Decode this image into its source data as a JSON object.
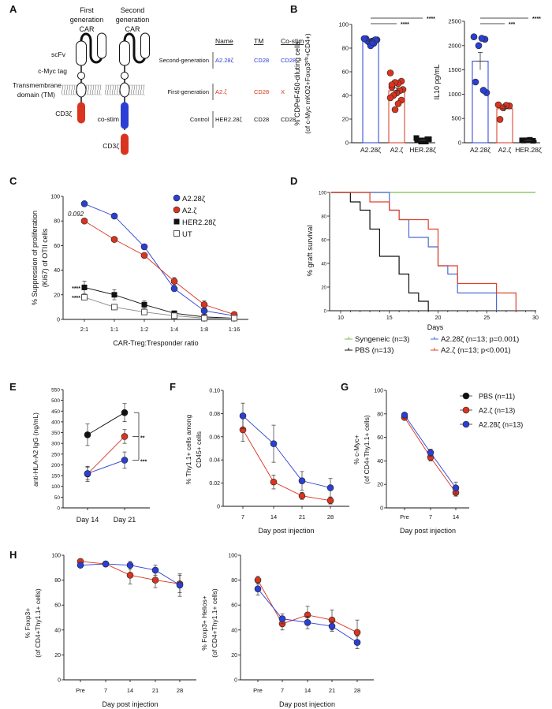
{
  "panel_labels": [
    "A",
    "B",
    "C",
    "D",
    "E",
    "F",
    "G",
    "H"
  ],
  "diagram": {
    "first_title": [
      "First",
      "generation",
      "CAR"
    ],
    "second_title": [
      "Second",
      "generation",
      "CAR"
    ],
    "labels": {
      "scfv": "scFv",
      "cmyc": "c-Myc tag",
      "tm1": "Transmembrane",
      "tm2": "domain (TM)",
      "cd3z_1": "CD3ζ",
      "costim": "co-stim",
      "cd3z_2": "CD3ζ"
    },
    "colors": {
      "cd3z": "#d9341f",
      "costim": "#2b3fd4"
    },
    "table": {
      "headers": [
        "Name",
        "TM",
        "Co-stim"
      ],
      "rows": [
        {
          "group": "Second-generation",
          "name": "A2.28ζ",
          "tm": "CD28",
          "costim": "CD28",
          "color": "#2b3fd4"
        },
        {
          "group": "First-generation",
          "name": "A2.ζ",
          "tm": "CD28",
          "costim": "X",
          "color": "#d9341f"
        },
        {
          "group": "Control",
          "name": "HER2.28ζ",
          "tm": "CD28",
          "costim": "CD28",
          "color": "#111111"
        }
      ]
    }
  },
  "chart_data": [
    {
      "panel": "B",
      "type": "bar",
      "categories": [
        "A2.28ζ",
        "A2.ζ",
        "HER.28ζ"
      ],
      "ylabel_lines": [
        "% CDPeF450-diluting cells",
        "(of c-Myc mKO2+Foxp3",
        "gfp",
        "+CD4+)"
      ],
      "ylim": [
        0,
        100
      ],
      "yticks": [
        "0",
        "20",
        "40",
        "60",
        "80",
        "100"
      ],
      "colors": [
        "#2b3fd4",
        "#d9341f",
        "#111111"
      ],
      "means": [
        86,
        44,
        2
      ],
      "sem": [
        1,
        2.5,
        0.5
      ],
      "points": [
        [
          88,
          87,
          86,
          85,
          88,
          87,
          84,
          82,
          86,
          88,
          87,
          85
        ],
        [
          59,
          52,
          50,
          51,
          47,
          45,
          44,
          42,
          40,
          38,
          36,
          33,
          28,
          49
        ],
        [
          4,
          3,
          2,
          1,
          2,
          3,
          1,
          2
        ]
      ],
      "significance": [
        {
          "from": 0,
          "to": 2,
          "label": "****"
        },
        {
          "from": 0,
          "to": 1,
          "label": "****"
        }
      ]
    },
    {
      "panel": "B",
      "type": "bar",
      "categories": [
        "A2.28ζ",
        "A2.ζ",
        "HER.28ζ"
      ],
      "ylabel_lines": [
        "IL10 pg/mL"
      ],
      "ylim": [
        0,
        2500
      ],
      "yticks": [
        "0",
        "500",
        "1000",
        "1500",
        "2000",
        "2500"
      ],
      "colors": [
        "#2b3fd4",
        "#d9341f",
        "#111111"
      ],
      "means": [
        1680,
        700,
        45
      ],
      "sem": [
        180,
        50,
        10
      ],
      "points": [
        [
          2180,
          2130,
          2150,
          2000,
          1250,
          1030,
          1080
        ],
        [
          780,
          760,
          770,
          720,
          480
        ],
        [
          50,
          40,
          60,
          50,
          45
        ]
      ],
      "significance": [
        {
          "from": 0,
          "to": 2,
          "label": "****"
        },
        {
          "from": 0,
          "to": 1,
          "label": "***"
        }
      ]
    },
    {
      "panel": "C",
      "type": "line",
      "categories": [
        "2:1",
        "1:1",
        "1:2",
        "1:4",
        "1:8",
        "1:16"
      ],
      "xlabel": "CAR-Treg:Tresponder ratio",
      "ylabel_lines": [
        "% Suppression of proliferation",
        "(Ki67) of OTII cells"
      ],
      "ylim": [
        0,
        100
      ],
      "yticks": [
        "0",
        "20",
        "40",
        "60",
        "80",
        "100"
      ],
      "legend": "top-right",
      "series": [
        {
          "name": "A2.28ζ",
          "color": "#2b3fd4",
          "marker": "circle",
          "values": [
            94,
            84,
            59,
            25,
            7,
            3
          ],
          "errors": [
            0,
            0,
            0,
            1,
            1,
            1
          ]
        },
        {
          "name": "A2.ζ",
          "color": "#d9341f",
          "marker": "circle",
          "values": [
            80,
            65,
            52,
            31,
            12,
            4
          ],
          "errors": [
            0,
            0,
            0,
            3,
            3,
            1
          ]
        },
        {
          "name": "HER2.28ζ",
          "color": "#111111",
          "marker": "square",
          "values": [
            26,
            20,
            12,
            5,
            2,
            1
          ],
          "errors": [
            5,
            4,
            3,
            1.5,
            1,
            0.5
          ]
        },
        {
          "name": "UT",
          "color": "#888888",
          "marker": "open-square",
          "values": [
            18,
            10,
            6,
            3,
            1,
            1
          ],
          "errors": [
            1,
            1,
            1,
            0.5,
            0.5,
            0.5
          ]
        }
      ],
      "annotations": [
        "0.092",
        "****",
        "****"
      ]
    },
    {
      "panel": "D",
      "type": "line",
      "xlabel": "Days",
      "ylabel_lines": [
        "% graft survival"
      ],
      "xlim": [
        9,
        30
      ],
      "xticks": [
        "10",
        "15",
        "20",
        "25",
        "30"
      ],
      "ylim": [
        0,
        100
      ],
      "yticks": [
        "0",
        "20",
        "40",
        "60",
        "80",
        "100"
      ],
      "series": [
        {
          "name": "Syngeneic (n=3)",
          "color": "#7cbf4a",
          "steps": [
            [
              9,
              100
            ],
            [
              30,
              100
            ]
          ]
        },
        {
          "name": "PBS (n=13)",
          "color": "#111111",
          "steps": [
            [
              9,
              100
            ],
            [
              10,
              100
            ],
            [
              11,
              92
            ],
            [
              12,
              85
            ],
            [
              13,
              69
            ],
            [
              14,
              46
            ],
            [
              16,
              31
            ],
            [
              17,
              15
            ],
            [
              18,
              8
            ],
            [
              19,
              0
            ]
          ]
        },
        {
          "name": "A2.28ζ (n=13; p=0.001)",
          "color": "#4a6ad8",
          "steps": [
            [
              9,
              100
            ],
            [
              14,
              100
            ],
            [
              15,
              85
            ],
            [
              16,
              77
            ],
            [
              17,
              62
            ],
            [
              19,
              54
            ],
            [
              20,
              38
            ],
            [
              21,
              31
            ],
            [
              22,
              15
            ],
            [
              26,
              0
            ]
          ]
        },
        {
          "name": "A2.ζ (n=13; p<0.001)",
          "color": "#e0402a",
          "steps": [
            [
              9,
              100
            ],
            [
              13,
              100
            ],
            [
              13,
              92
            ],
            [
              15,
              85
            ],
            [
              16,
              77
            ],
            [
              19,
              69
            ],
            [
              20,
              38
            ],
            [
              22,
              23
            ],
            [
              26,
              15
            ],
            [
              28,
              0
            ]
          ]
        }
      ]
    },
    {
      "panel": "E",
      "type": "line",
      "categories": [
        "Day 14",
        "Day 21"
      ],
      "ylabel_lines": [
        "anti-HLA-A2 IgG (ng/mL)"
      ],
      "ylim": [
        0,
        550
      ],
      "yticks": [
        "0",
        "50",
        "100",
        "150",
        "200",
        "250",
        "300",
        "350",
        "400",
        "450",
        "500",
        "550"
      ],
      "series": [
        {
          "color": "#111111",
          "marker": "circle",
          "values": [
            340,
            443
          ],
          "errors": [
            50,
            42
          ]
        },
        {
          "color": "#d9341f",
          "marker": "circle",
          "values": [
            158,
            332
          ],
          "errors": [
            35,
            32
          ]
        },
        {
          "color": "#2b3fd4",
          "marker": "circle",
          "values": [
            160,
            222
          ],
          "errors": [
            30,
            38
          ]
        }
      ],
      "significance": [
        "**",
        "***"
      ]
    },
    {
      "panel": "F",
      "type": "line",
      "categories": [
        "7",
        "14",
        "21",
        "28"
      ],
      "xlabel": "Day post injection",
      "ylabel_lines": [
        "% Thy1.1+ cells among",
        "CD45+ cells"
      ],
      "ylim": [
        0,
        0.1
      ],
      "yticks": [
        "0",
        "0.02",
        "0.04",
        "0.06",
        "0.08",
        "0.10"
      ],
      "series": [
        {
          "color": "#d9341f",
          "marker": "circle",
          "values": [
            0.066,
            0.021,
            0.009,
            0.005
          ],
          "errors": [
            0.01,
            0.006,
            0.003,
            0.003
          ]
        },
        {
          "color": "#2b3fd4",
          "marker": "circle",
          "values": [
            0.078,
            0.054,
            0.022,
            0.016
          ],
          "errors": [
            0.011,
            0.016,
            0.008,
            0.008
          ]
        }
      ]
    },
    {
      "panel": "G",
      "type": "line",
      "categories": [
        "Pre",
        "7",
        "14"
      ],
      "xlabel": "Day post injection",
      "ylabel_lines": [
        "% c-Myc+",
        "(of CD4+Thy1.1+ cells)"
      ],
      "ylim": [
        0,
        100
      ],
      "yticks": [
        "0",
        "20",
        "40",
        "60",
        "80",
        "100"
      ],
      "series": [
        {
          "color": "#d9341f",
          "marker": "circle",
          "values": [
            77,
            43,
            13
          ],
          "errors": [
            1,
            3,
            3
          ]
        },
        {
          "color": "#2b3fd4",
          "marker": "circle",
          "values": [
            79,
            47,
            17
          ],
          "errors": [
            1,
            3,
            5
          ]
        }
      ],
      "legend_entries": [
        {
          "label": "PBS (n=11)",
          "color": "#111111"
        },
        {
          "label": "A2.ζ (n=13)",
          "color": "#d9341f"
        },
        {
          "label": "A2.28ζ (n=13)",
          "color": "#2b3fd4"
        }
      ]
    },
    {
      "panel": "H",
      "type": "line",
      "categories": [
        "Pre",
        "7",
        "14",
        "21",
        "28"
      ],
      "xlabel": "Day post injection",
      "ylabel_lines": [
        "% Foxp3+",
        "(of CD4+Thy1.1+ cells)"
      ],
      "ylim": [
        0,
        100
      ],
      "yticks": [
        "0",
        "20",
        "40",
        "60",
        "80",
        "100"
      ],
      "series": [
        {
          "color": "#d9341f",
          "marker": "circle",
          "values": [
            95,
            93,
            84,
            80,
            77
          ],
          "errors": [
            2,
            2,
            7,
            6,
            7
          ]
        },
        {
          "color": "#2b3fd4",
          "marker": "circle",
          "values": [
            92,
            93,
            92,
            88,
            76
          ],
          "errors": [
            2,
            2,
            3,
            4,
            9
          ]
        }
      ]
    },
    {
      "panel": "H",
      "type": "line",
      "categories": [
        "Pre",
        "7",
        "14",
        "21",
        "28"
      ],
      "xlabel": "Day post injection",
      "ylabel_lines": [
        "% Foxp3+ Helios+",
        "(of CD4+Thy1.1+ cells)"
      ],
      "ylim": [
        0,
        100
      ],
      "yticks": [
        "0",
        "20",
        "40",
        "60",
        "80",
        "100"
      ],
      "series": [
        {
          "color": "#d9341f",
          "marker": "circle",
          "values": [
            80,
            45,
            52,
            48,
            38
          ],
          "errors": [
            3,
            5,
            7,
            8,
            10
          ]
        },
        {
          "color": "#2b3fd4",
          "marker": "circle",
          "values": [
            73,
            49,
            46,
            43,
            30
          ],
          "errors": [
            5,
            4,
            5,
            4,
            5
          ]
        }
      ]
    }
  ]
}
